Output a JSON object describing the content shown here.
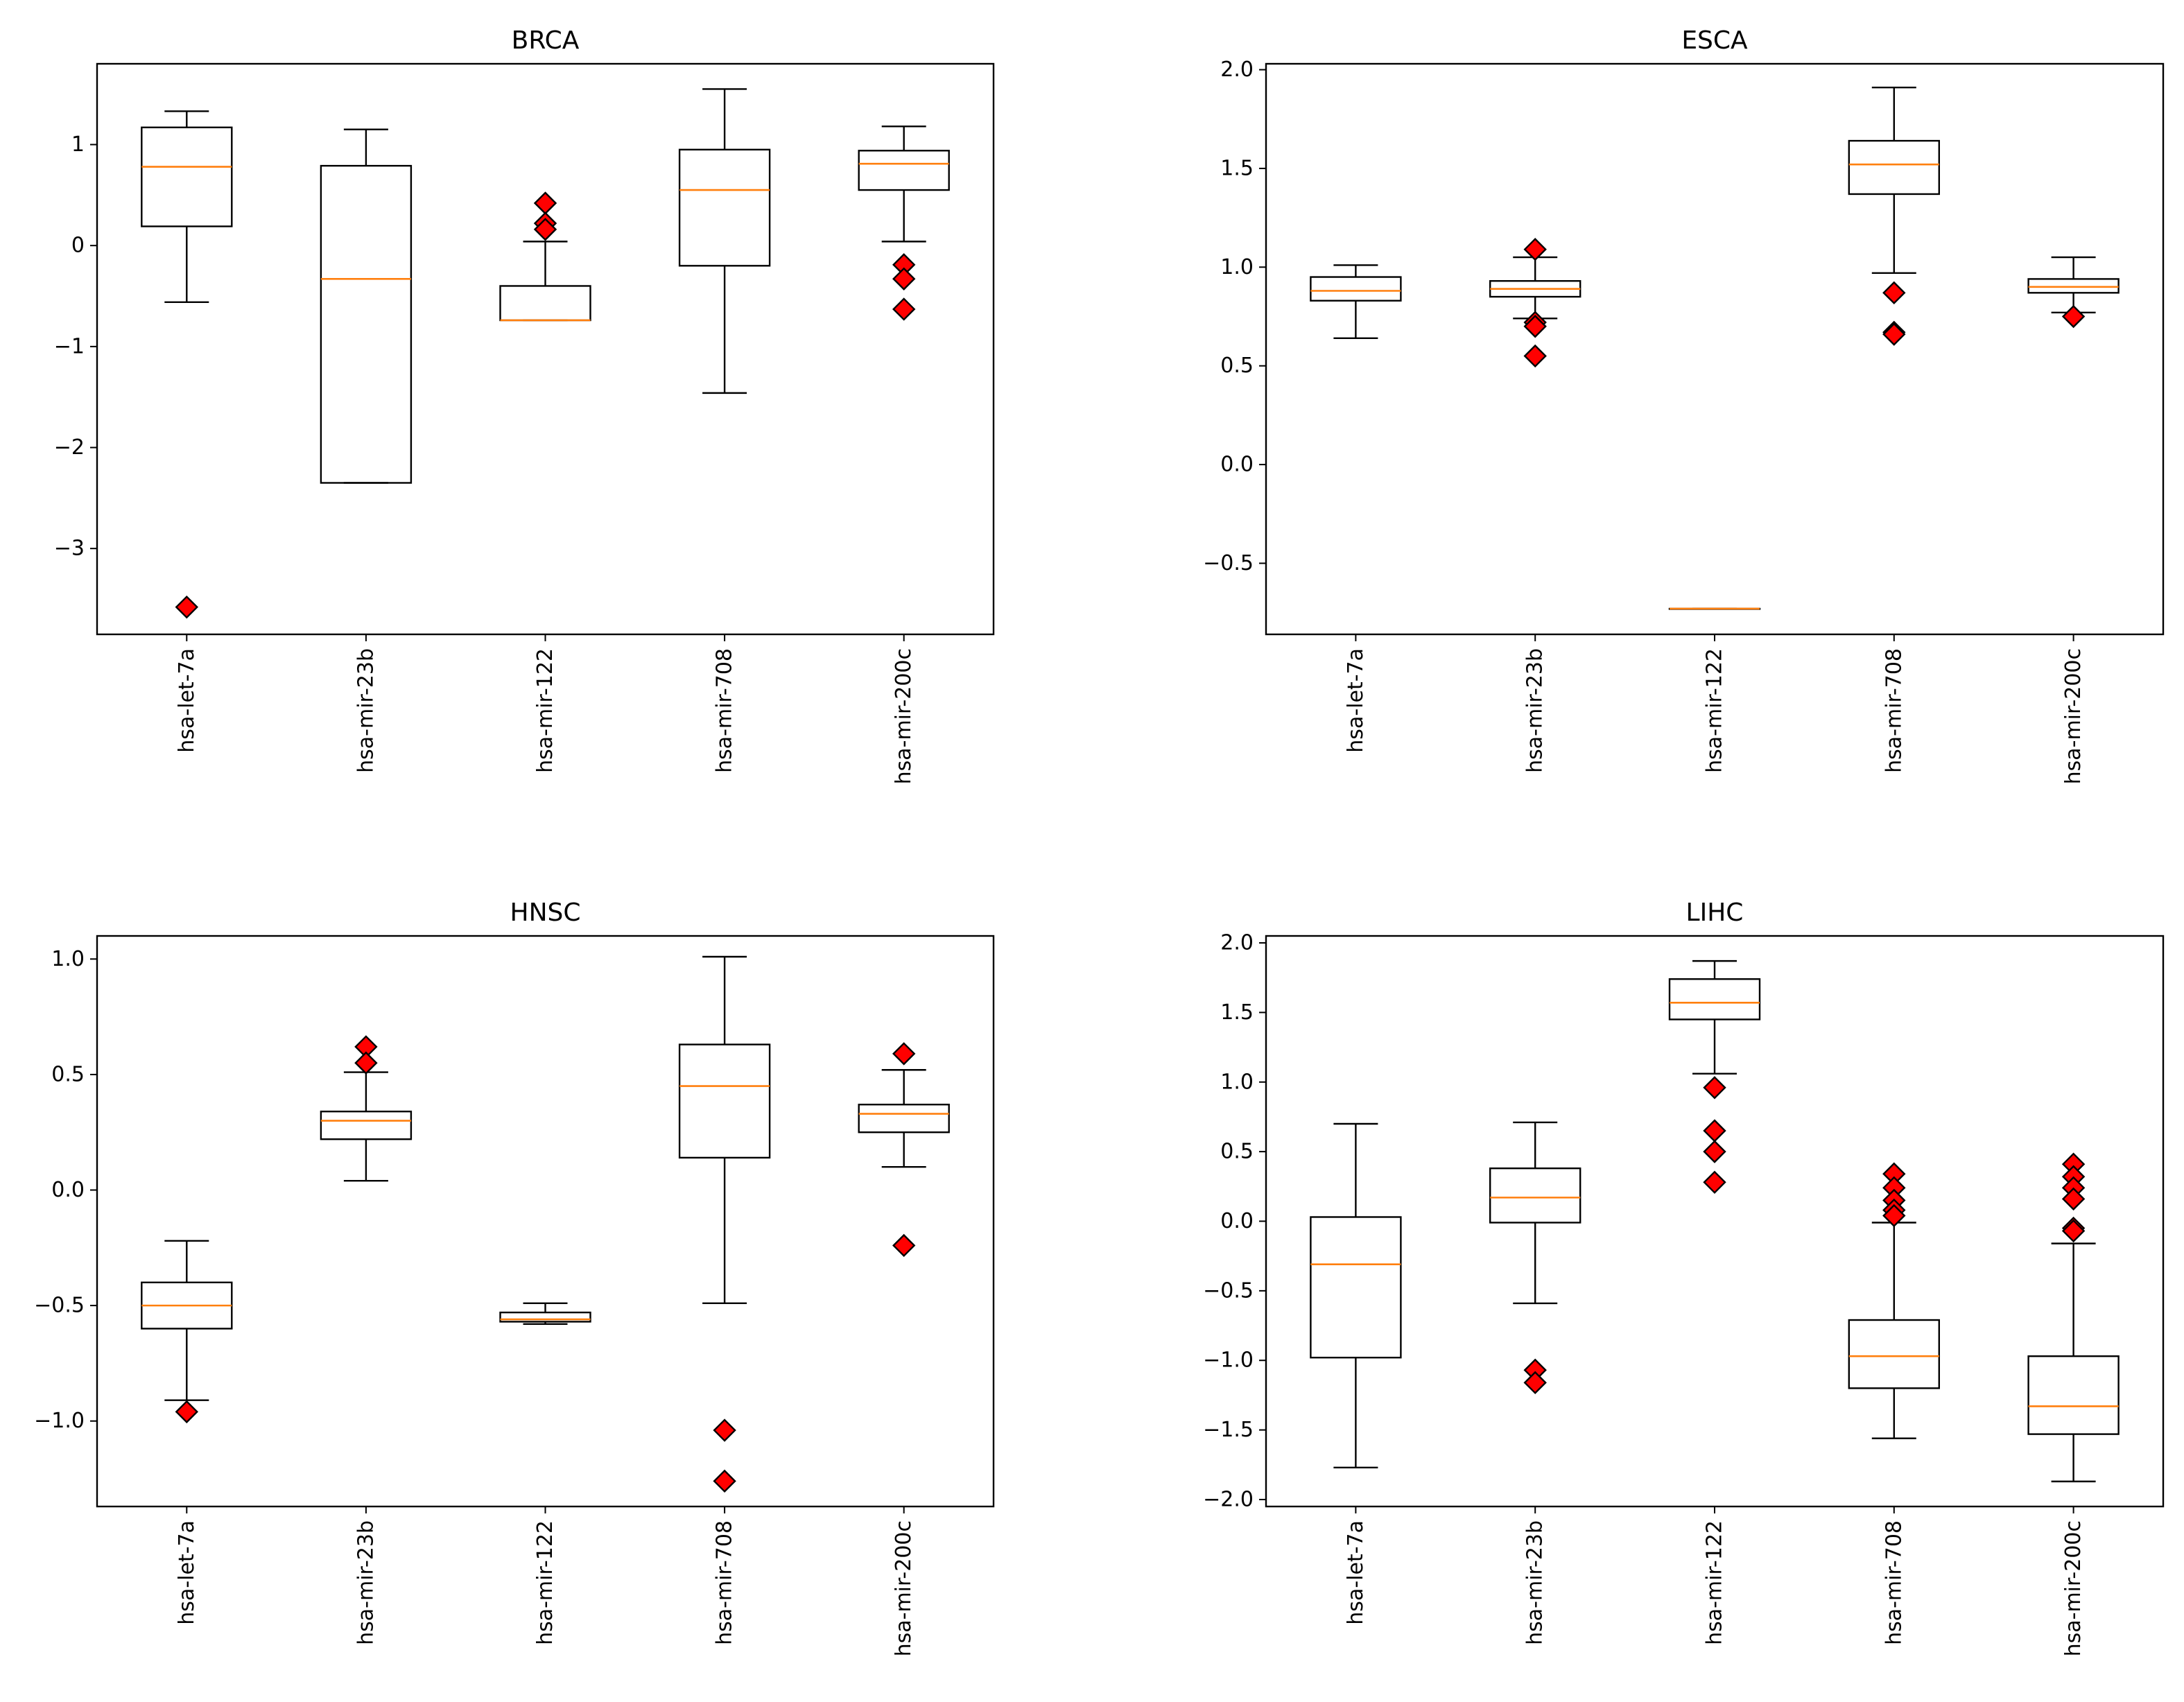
{
  "colors": {
    "median": "#ff7f0e",
    "outlier_fill": "#ff0000",
    "outlier_edge": "#000000",
    "box_edge": "#000000",
    "background": "#ffffff"
  },
  "chart_data": [
    {
      "type": "boxplot",
      "title": "BRCA",
      "xlabel": "",
      "ylabel": "",
      "ylim": [
        -3.85,
        1.8
      ],
      "yticks": [
        1,
        0,
        -1,
        -2,
        -3
      ],
      "ytick_labels": [
        "1",
        "0",
        "−1",
        "−2",
        "−3"
      ],
      "categories": [
        "hsa-let-7a",
        "hsa-mir-23b",
        "hsa-mir-122",
        "hsa-mir-708",
        "hsa-mir-200c"
      ],
      "boxes": [
        {
          "whislo": -0.56,
          "q1": 0.19,
          "med": 0.78,
          "q3": 1.17,
          "whishi": 1.33,
          "fliers": [
            -3.58
          ]
        },
        {
          "whislo": -2.35,
          "q1": -2.35,
          "med": -0.33,
          "q3": 0.79,
          "whishi": 1.15,
          "fliers": []
        },
        {
          "whislo": -0.74,
          "q1": -0.74,
          "med": -0.74,
          "q3": -0.4,
          "whishi": 0.04,
          "fliers": [
            0.42,
            0.22,
            0.16
          ]
        },
        {
          "whislo": -1.46,
          "q1": -0.2,
          "med": 0.55,
          "q3": 0.95,
          "whishi": 1.55,
          "fliers": []
        },
        {
          "whislo": 0.04,
          "q1": 0.55,
          "med": 0.81,
          "q3": 0.94,
          "whishi": 1.18,
          "fliers": [
            -0.19,
            -0.33,
            -0.63
          ]
        }
      ]
    },
    {
      "type": "boxplot",
      "title": "ESCA",
      "xlabel": "",
      "ylabel": "",
      "ylim": [
        -0.86,
        2.03
      ],
      "yticks": [
        2.0,
        1.5,
        1.0,
        0.5,
        0.0,
        -0.5
      ],
      "ytick_labels": [
        "2.0",
        "1.5",
        "1.0",
        "0.5",
        "0.0",
        "−0.5"
      ],
      "categories": [
        "hsa-let-7a",
        "hsa-mir-23b",
        "hsa-mir-122",
        "hsa-mir-708",
        "hsa-mir-200c"
      ],
      "boxes": [
        {
          "whislo": 0.64,
          "q1": 0.83,
          "med": 0.88,
          "q3": 0.95,
          "whishi": 1.01,
          "fliers": []
        },
        {
          "whislo": 0.74,
          "q1": 0.85,
          "med": 0.89,
          "q3": 0.93,
          "whishi": 1.05,
          "fliers": [
            1.09,
            0.72,
            0.7,
            0.55
          ]
        },
        {
          "whislo": -0.73,
          "q1": -0.73,
          "med": -0.73,
          "q3": -0.73,
          "whishi": -0.73,
          "fliers": []
        },
        {
          "whislo": 0.97,
          "q1": 1.37,
          "med": 1.52,
          "q3": 1.64,
          "whishi": 1.91,
          "fliers": [
            0.87,
            0.67,
            0.66
          ]
        },
        {
          "whislo": 0.77,
          "q1": 0.87,
          "med": 0.9,
          "q3": 0.94,
          "whishi": 1.05,
          "fliers": [
            0.75
          ]
        }
      ]
    },
    {
      "type": "boxplot",
      "title": "HNSC",
      "xlabel": "",
      "ylabel": "",
      "ylim": [
        -1.37,
        1.1
      ],
      "yticks": [
        1.0,
        0.5,
        0.0,
        -0.5,
        -1.0
      ],
      "ytick_labels": [
        "1.0",
        "0.5",
        "0.0",
        "−0.5",
        "−1.0"
      ],
      "categories": [
        "hsa-let-7a",
        "hsa-mir-23b",
        "hsa-mir-122",
        "hsa-mir-708",
        "hsa-mir-200c"
      ],
      "boxes": [
        {
          "whislo": -0.91,
          "q1": -0.6,
          "med": -0.5,
          "q3": -0.4,
          "whishi": -0.22,
          "fliers": [
            -0.96
          ]
        },
        {
          "whislo": 0.04,
          "q1": 0.22,
          "med": 0.3,
          "q3": 0.34,
          "whishi": 0.51,
          "fliers": [
            0.62,
            0.55
          ]
        },
        {
          "whislo": -0.58,
          "q1": -0.57,
          "med": -0.56,
          "q3": -0.53,
          "whishi": -0.49,
          "fliers": []
        },
        {
          "whislo": -0.49,
          "q1": 0.14,
          "med": 0.45,
          "q3": 0.63,
          "whishi": 1.01,
          "fliers": [
            -1.04,
            -1.26
          ]
        },
        {
          "whislo": 0.1,
          "q1": 0.25,
          "med": 0.33,
          "q3": 0.37,
          "whishi": 0.52,
          "fliers": [
            0.59,
            -0.24
          ]
        }
      ]
    },
    {
      "type": "boxplot",
      "title": "LIHC",
      "xlabel": "",
      "ylabel": "",
      "ylim": [
        -2.05,
        2.05
      ],
      "yticks": [
        2.0,
        1.5,
        1.0,
        0.5,
        0.0,
        -0.5,
        -1.0,
        -1.5,
        -2.0
      ],
      "ytick_labels": [
        "2.0",
        "1.5",
        "1.0",
        "0.5",
        "0.0",
        "−0.5",
        "−1.0",
        "−1.5",
        "−2.0"
      ],
      "categories": [
        "hsa-let-7a",
        "hsa-mir-23b",
        "hsa-mir-122",
        "hsa-mir-708",
        "hsa-mir-200c"
      ],
      "boxes": [
        {
          "whislo": -1.77,
          "q1": -0.98,
          "med": -0.31,
          "q3": 0.03,
          "whishi": 0.7,
          "fliers": []
        },
        {
          "whislo": -0.59,
          "q1": -0.01,
          "med": 0.17,
          "q3": 0.38,
          "whishi": 0.71,
          "fliers": [
            -1.07,
            -1.16
          ]
        },
        {
          "whislo": 1.06,
          "q1": 1.45,
          "med": 1.57,
          "q3": 1.74,
          "whishi": 1.87,
          "fliers": [
            0.96,
            0.65,
            0.5,
            0.28
          ]
        },
        {
          "whislo": -1.56,
          "q1": -1.2,
          "med": -0.97,
          "q3": -0.71,
          "whishi": -0.01,
          "fliers": [
            0.34,
            0.24,
            0.15,
            0.08,
            0.04
          ]
        },
        {
          "whislo": -1.87,
          "q1": -1.53,
          "med": -1.33,
          "q3": -0.97,
          "whishi": -0.16,
          "fliers": [
            0.41,
            0.32,
            0.24,
            0.16,
            -0.05,
            -0.07
          ]
        }
      ]
    }
  ]
}
